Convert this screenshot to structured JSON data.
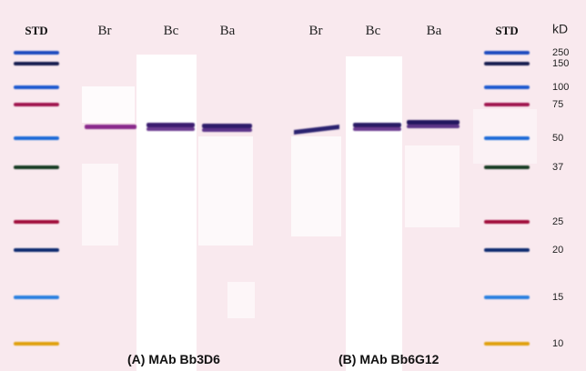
{
  "lane_labels": [
    "STD",
    "Br",
    "Bc",
    "Ba",
    "Br",
    "Bc",
    "Ba",
    "STD"
  ],
  "unit": "kD",
  "markers": [
    250,
    150,
    100,
    75,
    50,
    37,
    25,
    20,
    15,
    10
  ],
  "panels": [
    "(A) MAb Bb3D6",
    "(B) MAb Bb6G12"
  ]
}
